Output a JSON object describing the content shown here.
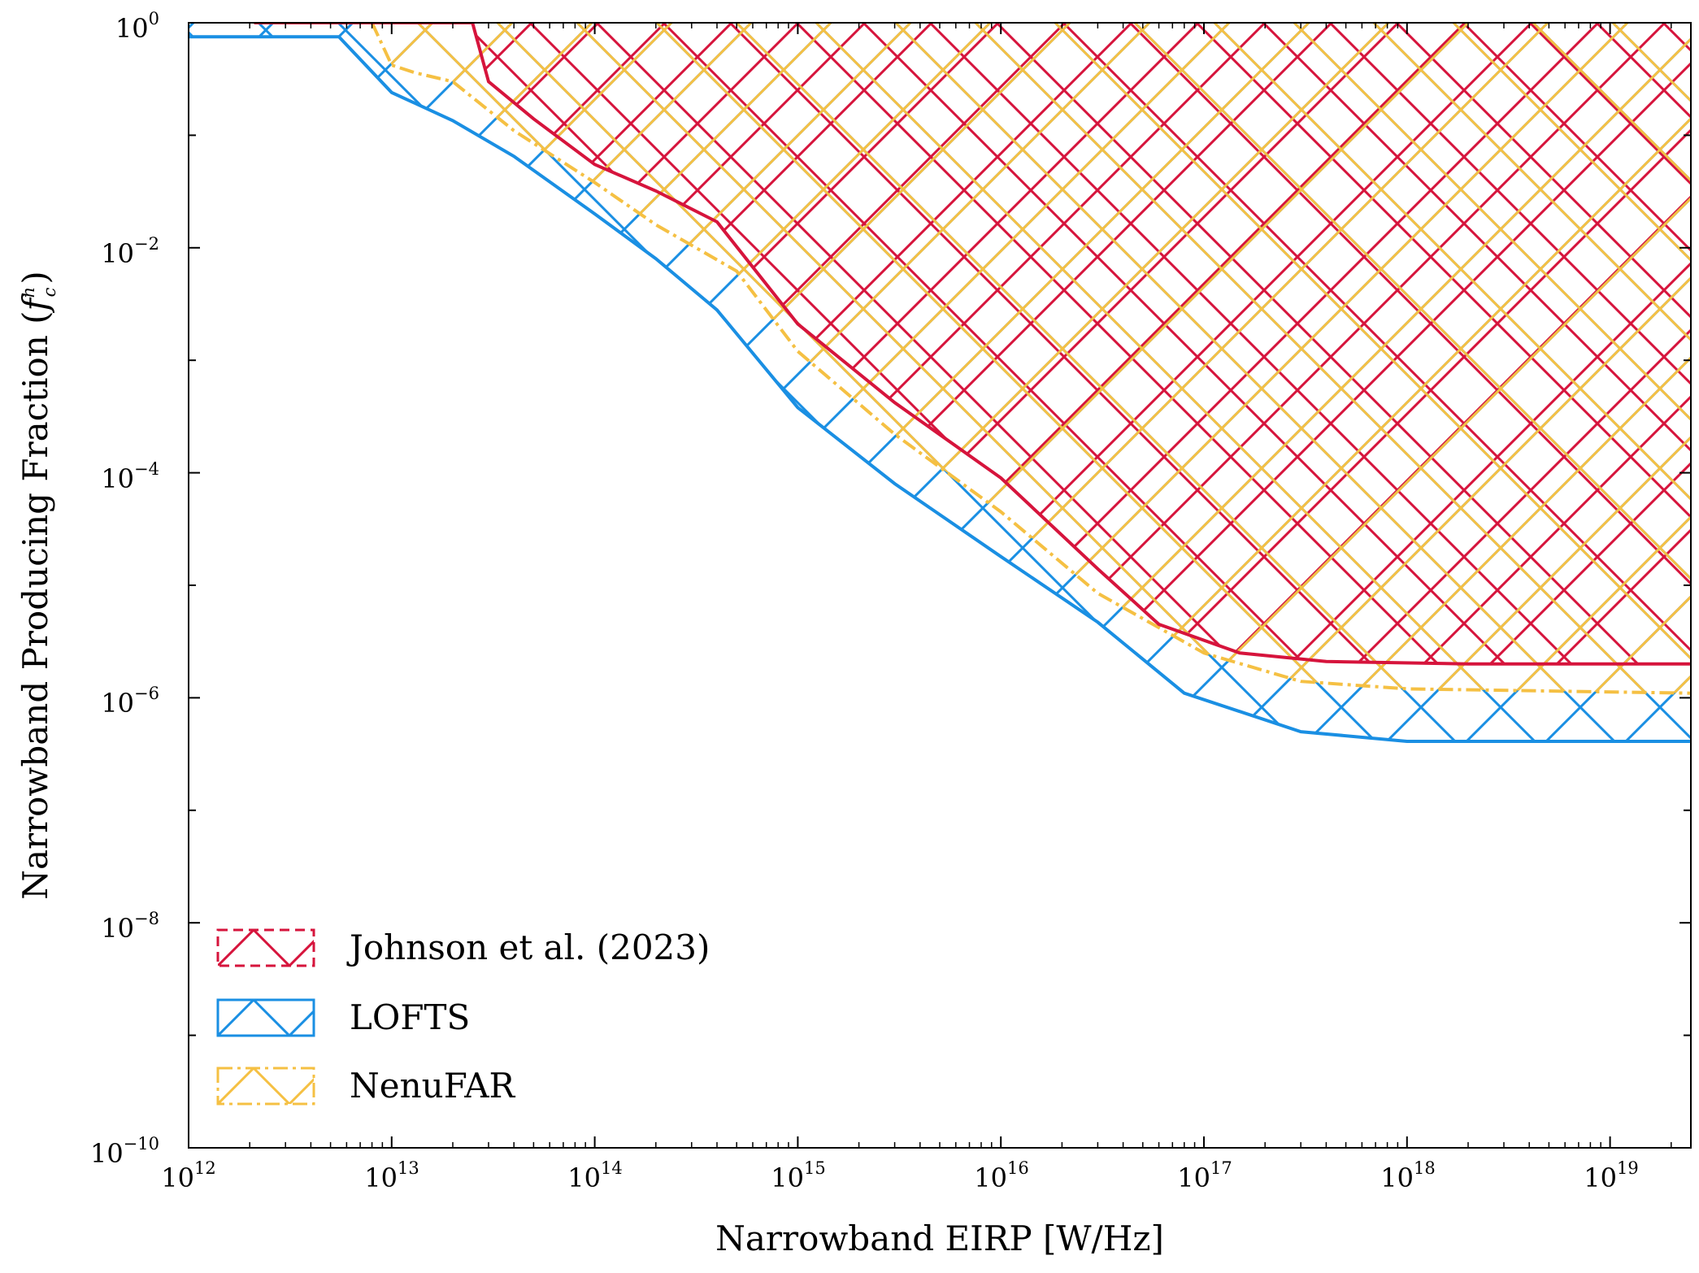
{
  "chart_data": {
    "type": "area",
    "title": "",
    "xlabel": "Narrowband EIRP [W/Hz]",
    "ylabel_main": "Narrowband Producing Fraction (",
    "ylabel_symbol": "f",
    "ylabel_sup": "n",
    "ylabel_sub": "c",
    "ylabel_close": ")",
    "xscale": "log",
    "yscale": "log",
    "xlim": [
      1000000000000.0,
      2.5e+19
    ],
    "ylim": [
      1e-10,
      1
    ],
    "x_ticks": [
      {
        "base": "10",
        "exp": "12"
      },
      {
        "base": "10",
        "exp": "13"
      },
      {
        "base": "10",
        "exp": "14"
      },
      {
        "base": "10",
        "exp": "15"
      },
      {
        "base": "10",
        "exp": "16"
      },
      {
        "base": "10",
        "exp": "17"
      },
      {
        "base": "10",
        "exp": "18"
      },
      {
        "base": "10",
        "exp": "19"
      }
    ],
    "y_ticks": [
      {
        "base": "10",
        "exp": "0"
      },
      {
        "base": "10",
        "exp": "−2"
      },
      {
        "base": "10",
        "exp": "−4"
      },
      {
        "base": "10",
        "exp": "−6"
      },
      {
        "base": "10",
        "exp": "−8"
      },
      {
        "base": "10",
        "exp": "−10"
      }
    ],
    "legend_position": "lower-left",
    "series": [
      {
        "name": "Johnson et al. (2023)",
        "color": "#d6143c",
        "linestyle": "solid",
        "legend_style": "dashed",
        "hatch": "x",
        "points": [
          [
            2100000000000.0,
            1.0
          ],
          [
            25000000000000.0,
            1.0
          ],
          [
            30000000000000.0,
            0.3
          ],
          [
            50000000000000.0,
            0.14
          ],
          [
            100000000000000.0,
            0.055
          ],
          [
            200000000000000.0,
            0.032
          ],
          [
            400000000000000.0,
            0.017
          ],
          [
            1000000000000000.0,
            0.0021
          ],
          [
            3000000000000000.0,
            0.00042
          ],
          [
            1e+16,
            9e-05
          ],
          [
            3e+16,
            1.4e-05
          ],
          [
            6e+16,
            4.5e-06
          ],
          [
            1.5e+17,
            2.5e-06
          ],
          [
            4e+17,
            2.1e-06
          ],
          [
            2e+18,
            2e-06
          ],
          [
            2.5e+19,
            2e-06
          ]
        ]
      },
      {
        "name": "LOFTS",
        "color": "#1a8fe3",
        "linestyle": "solid",
        "legend_style": "solid",
        "hatch": "x",
        "points": [
          [
            1000000000000.0,
            0.75
          ],
          [
            1100000000000.0,
            0.75
          ],
          [
            5500000000000.0,
            0.75
          ],
          [
            10000000000000.0,
            0.24
          ],
          [
            20000000000000.0,
            0.135
          ],
          [
            40000000000000.0,
            0.065
          ],
          [
            100000000000000.0,
            0.02
          ],
          [
            200000000000000.0,
            0.008
          ],
          [
            400000000000000.0,
            0.0028
          ],
          [
            1000000000000000.0,
            0.00038
          ],
          [
            3000000000000000.0,
            8e-05
          ],
          [
            1e+16,
            1.8e-05
          ],
          [
            3e+16,
            4.7e-06
          ],
          [
            8e+16,
            1.1e-06
          ],
          [
            3e+17,
            5e-07
          ],
          [
            1e+18,
            4.1e-07
          ],
          [
            2.5e+19,
            4.1e-07
          ]
        ]
      },
      {
        "name": "NenuFAR",
        "color": "#f5c043",
        "linestyle": "dashdot",
        "legend_style": "dashdot",
        "hatch": "v",
        "points": [
          [
            8000000000000.0,
            1.0
          ],
          [
            10000000000000.0,
            0.42
          ],
          [
            13000000000000.0,
            0.36
          ],
          [
            20000000000000.0,
            0.3
          ],
          [
            40000000000000.0,
            0.11
          ],
          [
            100000000000000.0,
            0.038
          ],
          [
            200000000000000.0,
            0.016
          ],
          [
            500000000000000.0,
            0.0062
          ],
          [
            1000000000000000.0,
            0.0012
          ],
          [
            3000000000000000.0,
            0.00022
          ],
          [
            1e+16,
            4.5e-05
          ],
          [
            3e+16,
            8.5e-06
          ],
          [
            1e+17,
            2.5e-06
          ],
          [
            3e+17,
            1.4e-06
          ],
          [
            1e+18,
            1.2e-06
          ],
          [
            2.5e+19,
            1.1e-06
          ]
        ]
      }
    ]
  }
}
